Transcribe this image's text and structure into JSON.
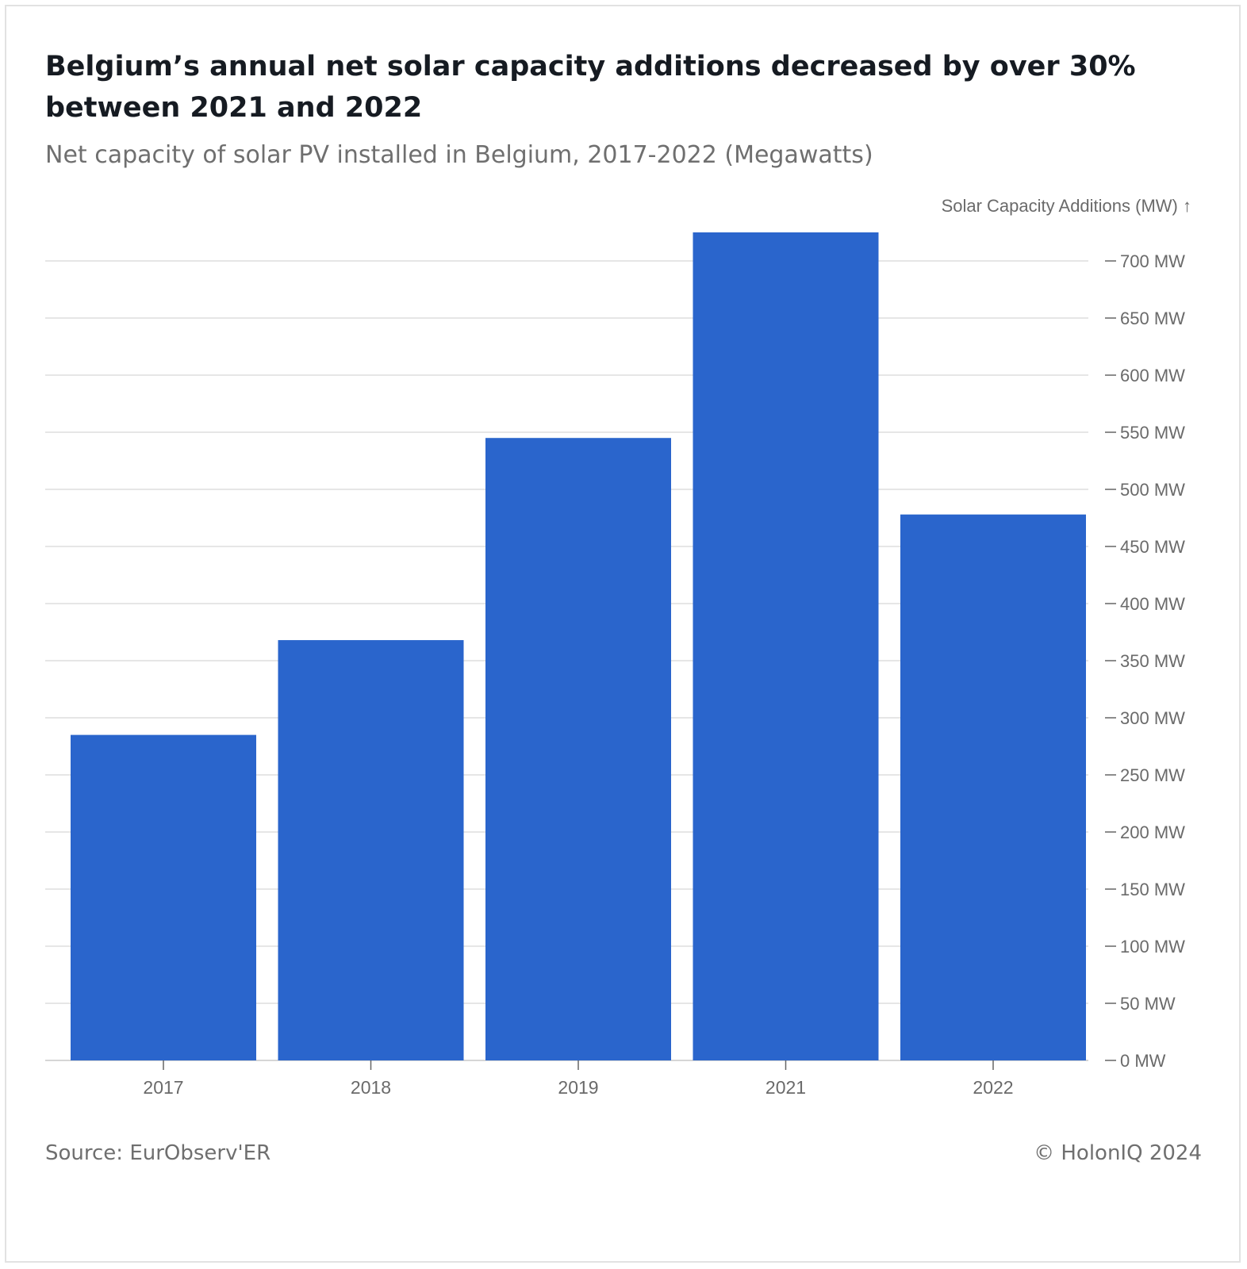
{
  "title": "Belgium’s annual net solar capacity additions decreased by over 30% between 2021 and 2022",
  "subtitle": "Net capacity of solar PV installed in Belgium, 2017-2022 (Megawatts)",
  "footer": {
    "source": "Source: EurObserv'ER",
    "credit": "© HolonIQ 2024"
  },
  "colors": {
    "bar": "#2a65cc",
    "grid": "#e6e6e6",
    "tick_text": "#6a6a6a",
    "title": "#161b22",
    "subtitle": "#6f6f6f"
  },
  "chart_data": {
    "type": "bar",
    "title": "Belgium’s annual net solar capacity additions decreased by over 30% between 2021 and 2022",
    "subtitle": "Net capacity of solar PV installed in Belgium, 2017-2022 (Megawatts)",
    "xlabel": "",
    "ylabel": "Solar Capacity Additions (MW) ↑",
    "categories": [
      "2017",
      "2018",
      "2019",
      "2021",
      "2022"
    ],
    "values": [
      285,
      368,
      545,
      725,
      478
    ],
    "ylim": [
      0,
      700
    ],
    "yticks": [
      0,
      50,
      100,
      150,
      200,
      250,
      300,
      350,
      400,
      450,
      500,
      550,
      600,
      650,
      700
    ],
    "ytick_labels": [
      "0 MW",
      "50 MW",
      "100 MW",
      "150 MW",
      "200 MW",
      "250 MW",
      "300 MW",
      "350 MW",
      "400 MW",
      "450 MW",
      "500 MW",
      "550 MW",
      "600 MW",
      "650 MW",
      "700 MW"
    ],
    "y_axis_position": "right",
    "grid": true,
    "legend": "none"
  }
}
